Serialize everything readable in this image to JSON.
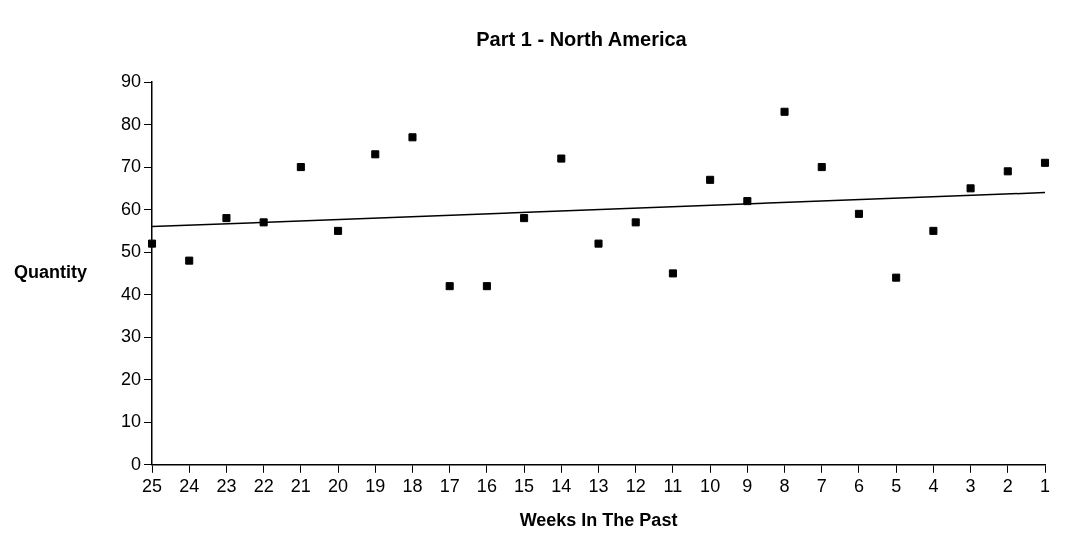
{
  "chart_data": {
    "type": "scatter",
    "title": "Part 1 - North America",
    "xlabel": "Weeks In The Past",
    "ylabel": "Quantity",
    "xlim": [
      25,
      1
    ],
    "xticks": [
      25,
      24,
      23,
      22,
      21,
      20,
      19,
      18,
      17,
      16,
      15,
      14,
      13,
      12,
      11,
      10,
      9,
      8,
      7,
      6,
      5,
      4,
      3,
      2,
      1
    ],
    "ylim": [
      0,
      90
    ],
    "yticks": [
      0,
      10,
      20,
      30,
      40,
      50,
      60,
      70,
      80,
      90
    ],
    "grid": false,
    "legend": false,
    "series": [
      {
        "color": "#000000",
        "marker": "square",
        "x": [
          25,
          24,
          23,
          22,
          21,
          20,
          19,
          18,
          17,
          16,
          15,
          14,
          13,
          12,
          11,
          10,
          9,
          8,
          7,
          6,
          5,
          4,
          3,
          2,
          1
        ],
        "values": [
          52,
          48,
          58,
          57,
          70,
          55,
          73,
          77,
          42,
          42,
          58,
          72,
          52,
          57,
          45,
          67,
          62,
          83,
          70,
          59,
          44,
          55,
          65,
          69,
          71
        ]
      },
      {
        "type": "line",
        "marker": "none",
        "color": "#000000",
        "x": [
          25,
          1
        ],
        "values": [
          56,
          64
        ]
      }
    ]
  }
}
